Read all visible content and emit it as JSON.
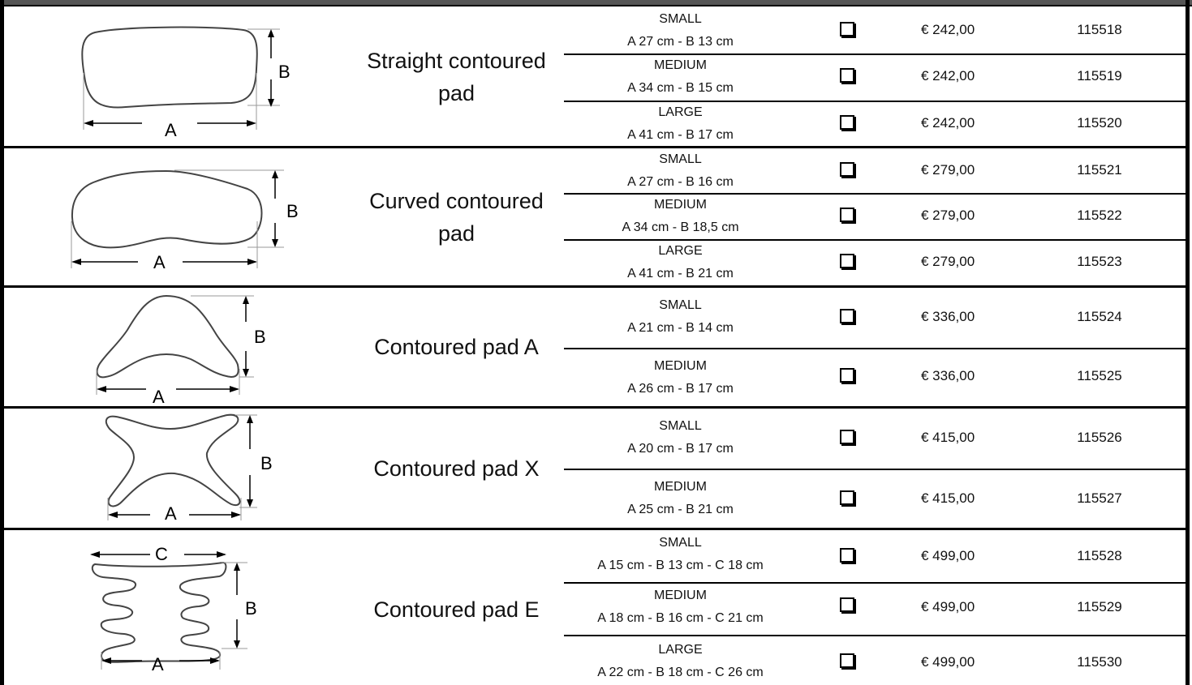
{
  "colors": {
    "frame": "#000000",
    "topbar": "#555555",
    "text": "#111111"
  },
  "products": [
    {
      "name_lines": [
        "Straight contoured",
        "pad"
      ],
      "dim_labels": [
        "A",
        "B"
      ],
      "icon": "straight-pad-outline-icon",
      "rows": [
        {
          "size": "SMALL",
          "dims": "A 27 cm - B 13 cm",
          "price": "€ 242,00",
          "code": "115518"
        },
        {
          "size": "MEDIUM",
          "dims": "A 34 cm - B 15 cm",
          "price": "€ 242,00",
          "code": "115519"
        },
        {
          "size": "LARGE",
          "dims": "A 41 cm - B 17 cm",
          "price": "€ 242,00",
          "code": "115520"
        }
      ]
    },
    {
      "name_lines": [
        "Curved contoured",
        "pad"
      ],
      "dim_labels": [
        "A",
        "B"
      ],
      "icon": "curved-pad-outline-icon",
      "rows": [
        {
          "size": "SMALL",
          "dims": "A 27 cm - B 16 cm",
          "price": "€ 279,00",
          "code": "115521"
        },
        {
          "size": "MEDIUM",
          "dims": "A 34 cm - B 18,5 cm",
          "price": "€ 279,00",
          "code": "115522"
        },
        {
          "size": "LARGE",
          "dims": "A 41 cm - B 21 cm",
          "price": "€ 279,00",
          "code": "115523"
        }
      ]
    },
    {
      "name_lines": [
        "Contoured pad A"
      ],
      "dim_labels": [
        "A",
        "B"
      ],
      "icon": "pad-a-outline-icon",
      "rows": [
        {
          "size": "SMALL",
          "dims": "A 21 cm - B 14 cm",
          "price": "€ 336,00",
          "code": "115524"
        },
        {
          "size": "MEDIUM",
          "dims": "A 26 cm - B 17 cm",
          "price": "€ 336,00",
          "code": "115525"
        }
      ]
    },
    {
      "name_lines": [
        "Contoured pad X"
      ],
      "dim_labels": [
        "A",
        "B"
      ],
      "icon": "pad-x-outline-icon",
      "rows": [
        {
          "size": "SMALL",
          "dims": "A 20 cm - B 17 cm",
          "price": "€ 415,00",
          "code": "115526"
        },
        {
          "size": "MEDIUM",
          "dims": "A 25 cm - B 21 cm",
          "price": "€ 415,00",
          "code": "115527"
        }
      ]
    },
    {
      "name_lines": [
        "Contoured pad E"
      ],
      "dim_labels": [
        "A",
        "B",
        "C"
      ],
      "icon": "pad-e-outline-icon",
      "rows": [
        {
          "size": "SMALL",
          "dims": "A 15 cm - B 13 cm - C 18 cm",
          "price": "€ 499,00",
          "code": "115528"
        },
        {
          "size": "MEDIUM",
          "dims": "A 18 cm - B 16 cm - C 21 cm",
          "price": "€ 499,00",
          "code": "115529"
        },
        {
          "size": "LARGE",
          "dims": "A 22 cm - B 18 cm - C 26 cm",
          "price": "€ 499,00",
          "code": "115530"
        }
      ]
    }
  ]
}
